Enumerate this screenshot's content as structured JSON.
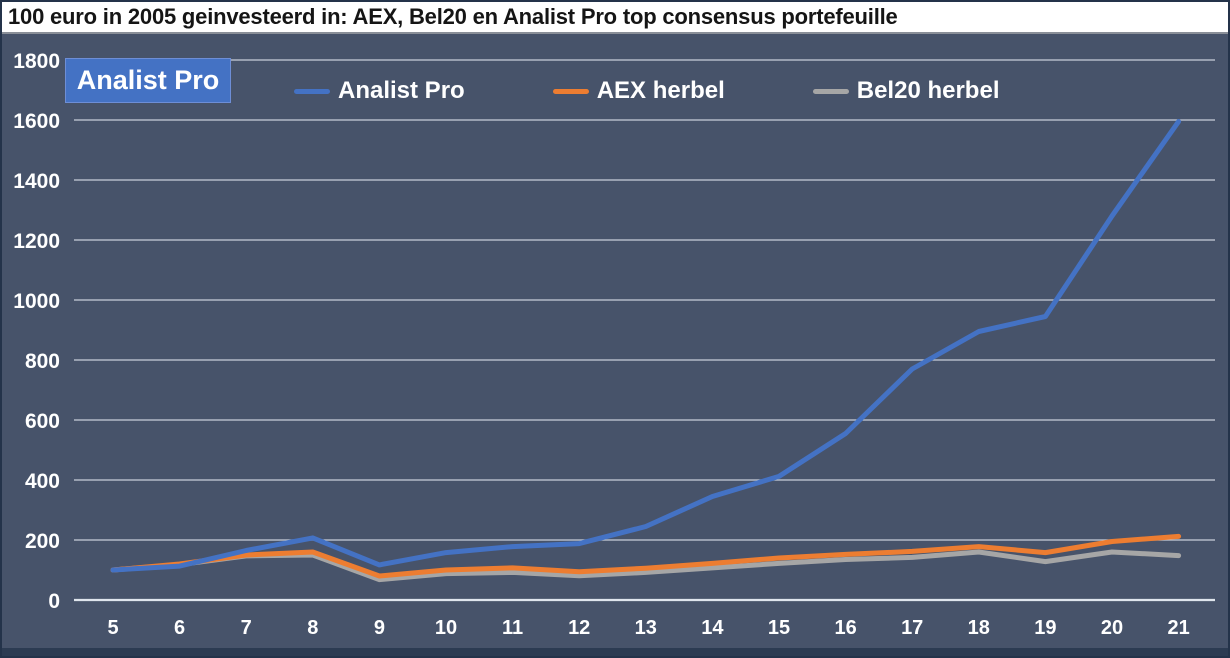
{
  "title": "100 euro in 2005 geinvesteerd in: AEX, Bel20 en Analist Pro top consensus portefeuille",
  "badge": {
    "label": "Analist Pro"
  },
  "legend": {
    "items": [
      {
        "label": "Analist Pro",
        "color": "#4472c4"
      },
      {
        "label": "AEX herbel",
        "color": "#ed7d31"
      },
      {
        "label": "Bel20 herbel",
        "color": "#a6a6a6"
      }
    ]
  },
  "colors": {
    "background": "#47536a",
    "title_background": "#ffffff",
    "title_text": "#151515",
    "gridline": "#dfe5ed",
    "axis_label_text": "#ffffff",
    "series_blue": "#4472c4",
    "series_orange": "#ed7d31",
    "series_gray": "#a6a6a6",
    "badge_background": "#4472c4",
    "outer_border": "#24334a"
  },
  "chart_data": {
    "type": "line",
    "title": "100 euro in 2005 geinvesteerd in: AEX, Bel20 en Analist Pro top consensus portefeuille",
    "categories": [
      5,
      6,
      7,
      8,
      9,
      10,
      11,
      12,
      13,
      14,
      15,
      16,
      17,
      18,
      19,
      20,
      21
    ],
    "series": [
      {
        "name": "Analist Pro",
        "color": "#4472c4",
        "values": [
          100,
          113,
          165,
          207,
          117,
          158,
          178,
          188,
          245,
          345,
          412,
          555,
          770,
          895,
          945,
          1280,
          1595
        ]
      },
      {
        "name": "AEX herbel",
        "color": "#ed7d31",
        "values": [
          100,
          120,
          150,
          160,
          80,
          100,
          107,
          94,
          106,
          122,
          140,
          152,
          162,
          178,
          158,
          195,
          212
        ]
      },
      {
        "name": "Bel20 herbel",
        "color": "#a6a6a6",
        "values": [
          100,
          118,
          147,
          150,
          68,
          88,
          92,
          81,
          92,
          107,
          122,
          135,
          142,
          160,
          128,
          160,
          148
        ]
      }
    ],
    "xlabel": "",
    "ylabel": "",
    "ylim": [
      0,
      1800
    ],
    "yticks": [
      0,
      200,
      400,
      600,
      800,
      1000,
      1200,
      1400,
      1600,
      1800
    ],
    "grid": "horizontal",
    "legend_position": "top-center",
    "start_value_note": "all series start at 100"
  }
}
